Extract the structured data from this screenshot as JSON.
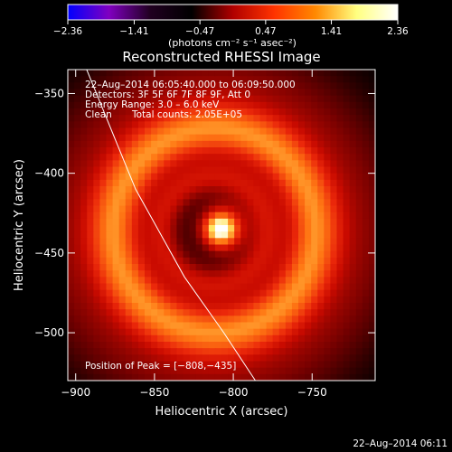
{
  "chart_data": {
    "type": "heatmap",
    "title": "Reconstructed RHESSI Image",
    "xlabel": "Heliocentric X (arcsec)",
    "ylabel": "Heliocentric Y (arcsec)",
    "xlim": [
      -905,
      -710
    ],
    "ylim": [
      -530,
      -335
    ],
    "x_ticks": [
      -900,
      -850,
      -800,
      -750
    ],
    "y_ticks": [
      -350,
      -400,
      -450,
      -500
    ],
    "colorbar": {
      "ticks": [
        -2.36,
        -1.41,
        -0.47,
        0.47,
        1.41,
        2.36
      ],
      "tick_labels": [
        "−2.36",
        "−1.41",
        "−0.47",
        "0.47",
        "1.41",
        "2.36"
      ],
      "label": "(photons cm⁻² s⁻¹ asec⁻²)",
      "colors": [
        "#0000ff",
        "#8000c0",
        "#200020",
        "#000000",
        "#b00000",
        "#ff3300",
        "#ff8800",
        "#ffff80",
        "#ffffff"
      ]
    },
    "source": {
      "peak": [
        -808,
        -435
      ],
      "core_sigma": 10,
      "ring_center": [
        -812,
        -436
      ],
      "ring_radius": 62,
      "ring_width": 14,
      "inner_radius": 32,
      "inner_width": 9
    },
    "limb_line": [
      [
        -893,
        -335
      ],
      [
        -862,
        -410
      ],
      [
        -831,
        -465
      ],
      [
        -806,
        -500
      ],
      [
        -786,
        -530
      ]
    ],
    "annotations": {
      "time_range": "22–Aug–2014 06:05:40.000 to 06:09:50.000",
      "detectors": "Detectors: 3F 5F 6F 7F 8F 9F, Att 0",
      "energy": "Energy Range: 3.0 – 6.0 keV",
      "method": "Clean",
      "counts": "Total counts: 2.05E+05",
      "peak_position": "Position of Peak = [−808,−435]"
    },
    "footer_date": "22–Aug–2014 06:11"
  }
}
